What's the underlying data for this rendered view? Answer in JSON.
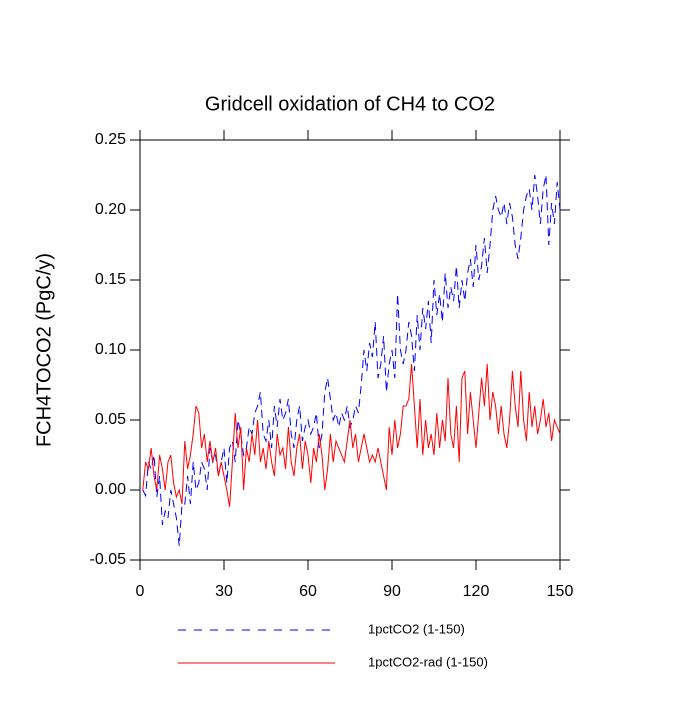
{
  "chart_data": {
    "type": "line",
    "title": "Gridcell oxidation of CH4 to CO2",
    "y_label": "FCH4TOCO2  (PgC/y)",
    "x": [
      1,
      2,
      3,
      4,
      5,
      6,
      7,
      8,
      9,
      10,
      11,
      12,
      13,
      14,
      15,
      16,
      17,
      18,
      19,
      20,
      21,
      22,
      23,
      24,
      25,
      26,
      27,
      28,
      29,
      30,
      31,
      32,
      33,
      34,
      35,
      36,
      37,
      38,
      39,
      40,
      41,
      42,
      43,
      44,
      45,
      46,
      47,
      48,
      49,
      50,
      51,
      52,
      53,
      54,
      55,
      56,
      57,
      58,
      59,
      60,
      61,
      62,
      63,
      64,
      65,
      66,
      67,
      68,
      69,
      70,
      71,
      72,
      73,
      74,
      75,
      76,
      77,
      78,
      79,
      80,
      81,
      82,
      83,
      84,
      85,
      86,
      87,
      88,
      89,
      90,
      91,
      92,
      93,
      94,
      95,
      96,
      97,
      98,
      99,
      100,
      101,
      102,
      103,
      104,
      105,
      106,
      107,
      108,
      109,
      110,
      111,
      112,
      113,
      114,
      115,
      116,
      117,
      118,
      119,
      120,
      121,
      122,
      123,
      124,
      125,
      126,
      127,
      128,
      129,
      130,
      131,
      132,
      133,
      134,
      135,
      136,
      137,
      138,
      139,
      140,
      141,
      142,
      143,
      144,
      145,
      146,
      147,
      148,
      149,
      150
    ],
    "series": [
      {
        "name": "1pctCO2 (1-150)",
        "color": "#0000ff",
        "dash": "dashed",
        "values": [
          0.0,
          -0.004,
          0.02,
          0.015,
          0.025,
          -0.005,
          0.01,
          -0.025,
          -0.015,
          -0.02,
          0.0,
          -0.01,
          -0.02,
          -0.04,
          -0.01,
          -0.01,
          0.01,
          -0.01,
          0.02,
          0.0,
          0.005,
          0.02,
          0.015,
          0.0,
          0.03,
          0.02,
          0.025,
          0.01,
          0.02,
          0.03,
          0.005,
          0.03,
          0.035,
          0.02,
          0.05,
          0.04,
          0.025,
          0.03,
          0.045,
          0.04,
          0.055,
          0.06,
          0.07,
          0.04,
          0.035,
          0.05,
          0.03,
          0.06,
          0.045,
          0.065,
          0.05,
          0.055,
          0.065,
          0.04,
          0.03,
          0.05,
          0.06,
          0.035,
          0.045,
          0.05,
          0.04,
          0.045,
          0.055,
          0.03,
          0.04,
          0.07,
          0.08,
          0.065,
          0.05,
          0.055,
          0.045,
          0.055,
          0.05,
          0.06,
          0.045,
          0.05,
          0.06,
          0.055,
          0.075,
          0.1,
          0.085,
          0.105,
          0.095,
          0.12,
          0.08,
          0.09,
          0.11,
          0.07,
          0.09,
          0.1,
          0.08,
          0.14,
          0.1,
          0.09,
          0.1,
          0.12,
          0.11,
          0.085,
          0.125,
          0.1,
          0.13,
          0.115,
          0.135,
          0.105,
          0.15,
          0.125,
          0.14,
          0.12,
          0.155,
          0.13,
          0.145,
          0.135,
          0.16,
          0.13,
          0.15,
          0.135,
          0.155,
          0.165,
          0.145,
          0.175,
          0.15,
          0.16,
          0.18,
          0.155,
          0.175,
          0.2,
          0.21,
          0.2,
          0.195,
          0.205,
          0.19,
          0.205,
          0.195,
          0.175,
          0.165,
          0.18,
          0.2,
          0.21,
          0.215,
          0.2,
          0.225,
          0.21,
          0.19,
          0.215,
          0.225,
          0.175,
          0.205,
          0.19,
          0.22,
          0.2
        ]
      },
      {
        "name": "1pctCO2-rad (1-150)",
        "color": "#ff0000",
        "dash": "solid",
        "values": [
          0.0,
          0.02,
          0.015,
          0.03,
          0.01,
          0.0,
          0.025,
          0.015,
          0.0,
          0.02,
          0.025,
          0.005,
          -0.005,
          0.0,
          -0.01,
          0.035,
          0.015,
          0.025,
          0.04,
          0.06,
          0.055,
          0.03,
          0.04,
          0.02,
          0.035,
          0.02,
          0.03,
          0.01,
          0.02,
          0.01,
          0.0,
          -0.012,
          0.02,
          0.055,
          0.03,
          0.045,
          0.0,
          0.03,
          0.02,
          0.04,
          0.025,
          0.05,
          0.02,
          0.03,
          0.015,
          0.035,
          0.02,
          0.01,
          0.04,
          0.025,
          0.03,
          0.015,
          0.045,
          0.02,
          0.01,
          0.03,
          0.04,
          0.015,
          0.035,
          0.025,
          0.005,
          0.03,
          0.02,
          0.04,
          0.025,
          0.0,
          0.015,
          0.04,
          0.02,
          0.035,
          0.03,
          0.025,
          0.02,
          0.035,
          0.05,
          0.03,
          0.04,
          0.02,
          0.03,
          0.04,
          0.03,
          0.02,
          0.025,
          0.02,
          0.03,
          0.02,
          0.01,
          0.0,
          0.045,
          0.025,
          0.05,
          0.03,
          0.04,
          0.06,
          0.06,
          0.065,
          0.09,
          0.06,
          0.03,
          0.065,
          0.025,
          0.05,
          0.03,
          0.04,
          0.025,
          0.055,
          0.03,
          0.05,
          0.035,
          0.08,
          0.04,
          0.03,
          0.06,
          0.02,
          0.08,
          0.085,
          0.04,
          0.07,
          0.05,
          0.03,
          0.055,
          0.08,
          0.06,
          0.09,
          0.05,
          0.07,
          0.06,
          0.04,
          0.06,
          0.04,
          0.03,
          0.05,
          0.085,
          0.06,
          0.045,
          0.085,
          0.05,
          0.035,
          0.07,
          0.045,
          0.06,
          0.04,
          0.05,
          0.065,
          0.045,
          0.055,
          0.035,
          0.05,
          0.045,
          0.04
        ]
      }
    ],
    "xlim": [
      0,
      150
    ],
    "xticks": [
      0,
      30,
      60,
      90,
      120,
      150
    ],
    "ylim": [
      -0.05,
      0.25
    ],
    "yticks": [
      -0.05,
      {
        "value": 0,
        "label": "0.00"
      },
      0.05,
      {
        "value": 0.1,
        "label": "0.10"
      },
      0.15,
      {
        "value": 0.2,
        "label": "0.20"
      },
      0.25
    ]
  }
}
